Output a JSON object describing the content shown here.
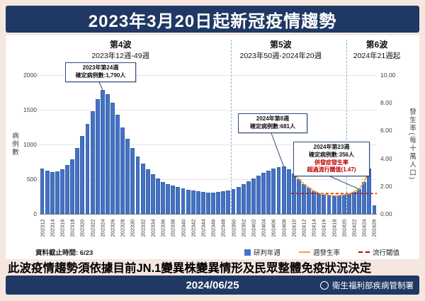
{
  "header": {
    "title": "2023年3月20日起新冠疫情趨勢"
  },
  "waves": [
    {
      "name": "第4波",
      "range": "2023年12週-49週"
    },
    {
      "name": "第5波",
      "range": "2023年50週-2024年20週"
    },
    {
      "name": "第6波",
      "range": "2024年21週起"
    }
  ],
  "chart_data": {
    "type": "bar",
    "title": "2023年3月20日起新冠疫情趨勢",
    "ylabel_left": "病例數",
    "ylabel_right": "發生率(每十萬人口)",
    "ylim_left": [
      0,
      2000
    ],
    "ylim_right": [
      0,
      10
    ],
    "yticks_left": [
      0,
      500,
      1000,
      1500,
      2000
    ],
    "yticks_right": [
      "0.00",
      "2.00",
      "4.00",
      "6.00",
      "8.00",
      "10.00"
    ],
    "grid": true,
    "categories": [
      "202312",
      "202313",
      "202314",
      "202315",
      "202316",
      "202317",
      "202318",
      "202319",
      "202320",
      "202321",
      "202322",
      "202323",
      "202324",
      "202325",
      "202326",
      "202327",
      "202328",
      "202329",
      "202330",
      "202331",
      "202332",
      "202333",
      "202334",
      "202335",
      "202336",
      "202337",
      "202338",
      "202339",
      "202340",
      "202341",
      "202342",
      "202343",
      "202344",
      "202345",
      "202346",
      "202347",
      "202348",
      "202349",
      "202350",
      "202351",
      "202352",
      "202401",
      "202402",
      "202403",
      "202404",
      "202405",
      "202406",
      "202407",
      "202408",
      "202409",
      "202410",
      "202411",
      "202412",
      "202413",
      "202414",
      "202415",
      "202416",
      "202417",
      "202418",
      "202419",
      "202420",
      "202421",
      "202422",
      "202423",
      "202424",
      "202425",
      "202426"
    ],
    "series": [
      {
        "name": "研判年週",
        "type": "bar",
        "axis": "left",
        "color": "#4472c4",
        "values": [
          650,
          620,
          600,
          610,
          640,
          700,
          790,
          950,
          1120,
          1300,
          1480,
          1650,
          1790,
          1730,
          1600,
          1430,
          1250,
          1080,
          950,
          830,
          720,
          640,
          570,
          510,
          460,
          430,
          410,
          390,
          370,
          350,
          340,
          330,
          320,
          310,
          310,
          320,
          330,
          340,
          360,
          390,
          430,
          470,
          510,
          550,
          590,
          620,
          650,
          670,
          681,
          640,
          580,
          500,
          430,
          380,
          330,
          300,
          280,
          270,
          260,
          265,
          275,
          290,
          320,
          356,
          460,
          650,
          120
        ]
      },
      {
        "name": "週發生率",
        "type": "line",
        "axis": "right",
        "color": "#f0a030",
        "start_index": 50,
        "values": [
          2.9,
          2.5,
          2.15,
          1.9,
          1.65,
          1.5,
          1.4,
          1.35,
          1.3,
          1.33,
          1.38,
          1.45,
          1.6,
          1.78,
          2.3,
          3.25
        ]
      },
      {
        "name": "流行閾值",
        "type": "threshold",
        "axis": "right",
        "color": "#c00000",
        "value": 1.47,
        "start_index": 50
      }
    ]
  },
  "annotations": [
    {
      "lines": [
        "2023年第24週",
        "確定病例數:1,790人"
      ],
      "emphasis": []
    },
    {
      "lines": [
        "2024年第8週",
        "確定病例數:681人"
      ],
      "emphasis": []
    },
    {
      "lines": [
        "2024年第23週",
        "確定病例數:356人"
      ],
      "emphasis": [
        "併發症發生率",
        "超過流行閾值(1.47)"
      ]
    }
  ],
  "chart_footer": {
    "data_cutoff": "資料截止時間: 6/23"
  },
  "note": "此波疫情趨勢須依據目前JN.1變異株變異情形及民眾整體免疫狀況決定",
  "bottom_bar": {
    "date": "2024/06/25",
    "agency": "衛生福利部疾病管制署"
  },
  "colors": {
    "navy": "#1f3864",
    "background": "#f5e6e0",
    "bar": "#4472c4",
    "rate_line": "#f0a030",
    "threshold_line": "#c00000"
  }
}
